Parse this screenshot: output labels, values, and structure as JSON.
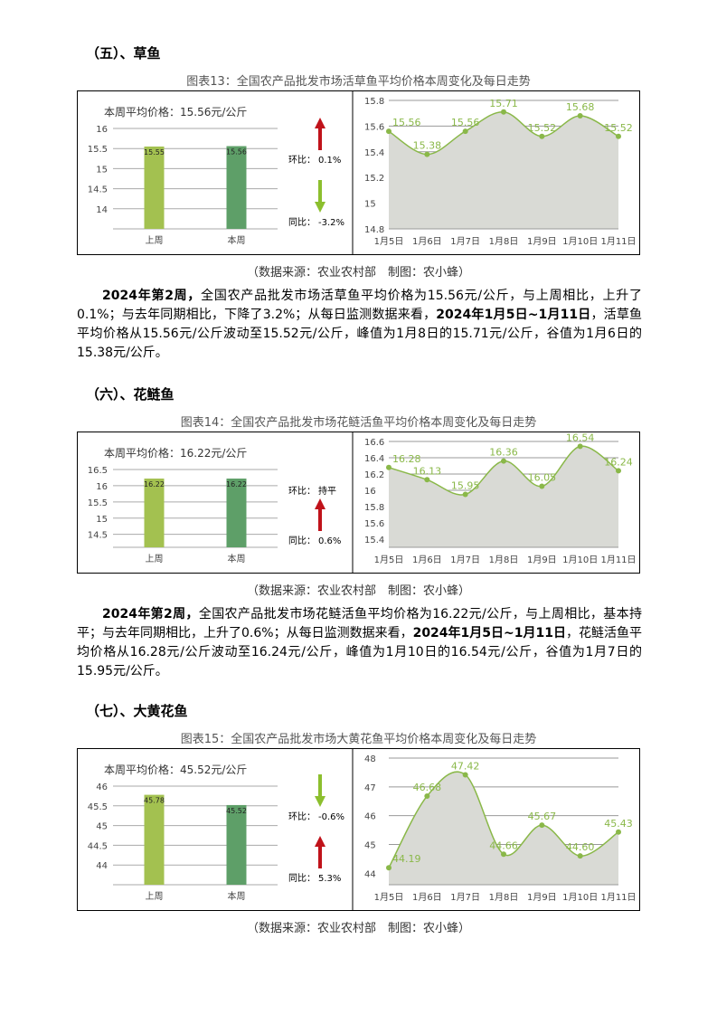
{
  "sections": [
    {
      "heading": "（五）、草鱼",
      "caption": "图表13：全国农产品批发市场活草鱼平均价格本周变化及每日走势",
      "bar_chart": {
        "type": "bar",
        "title": "本周平均价格：15.56元/公斤",
        "categories": [
          "上周",
          "本周"
        ],
        "values": [
          15.55,
          15.56
        ],
        "colors": [
          "#a3c150",
          "#5e9f68"
        ],
        "ylim": [
          13.5,
          16
        ],
        "yticks": [
          14,
          14.5,
          15,
          15.5,
          16
        ],
        "grid": true
      },
      "changes": [
        {
          "label": "环比：",
          "value": "0.1%",
          "arrow": "up"
        },
        {
          "label": "同比：",
          "value": "-3.2%",
          "arrow": "down"
        }
      ],
      "line_chart": {
        "type": "line",
        "categories": [
          "1月5日",
          "1月6日",
          "1月7日",
          "1月8日",
          "1月9日",
          "1月10日",
          "1月11日"
        ],
        "values": [
          15.56,
          15.38,
          15.56,
          15.71,
          15.52,
          15.68,
          15.52
        ],
        "ylim": [
          14.8,
          15.8
        ],
        "yticks": [
          14.8,
          15,
          15.2,
          15.4,
          15.6,
          15.8
        ],
        "color": "#8ab849",
        "area_color": "#d9dad5",
        "grid": true
      },
      "source": "（数据来源：农业农村部　制图：农小蜂）",
      "paragraph": [
        {
          "text": "2024年第2周，",
          "bold": true
        },
        {
          "text": "全国农产品批发市场活草鱼平均价格为15.56元/公斤，与上周相比，上升了0.1%；与去年同期相比，下降了3.2%；从每日监测数据来看，",
          "bold": false
        },
        {
          "text": "2024年1月5日~1月11日",
          "bold": true
        },
        {
          "text": "，活草鱼平均价格从15.56元/公斤波动至15.52元/公斤，峰值为1月8日的15.71元/公斤，谷值为1月6日的15.38元/公斤。",
          "bold": false
        }
      ]
    },
    {
      "heading": "（六）、花鲢鱼",
      "caption": "图表14：全国农产品批发市场花鲢活鱼平均价格本周变化及每日走势",
      "bar_chart": {
        "type": "bar",
        "title": "本周平均价格：16.22元/公斤",
        "categories": [
          "上周",
          "本周"
        ],
        "values": [
          16.22,
          16.22
        ],
        "colors": [
          "#a3c150",
          "#5e9f68"
        ],
        "ylim": [
          14.1,
          16.5
        ],
        "yticks": [
          14.5,
          15,
          15.5,
          16,
          16.5
        ],
        "grid": true
      },
      "changes": [
        {
          "label": "环比：",
          "value": "持平",
          "arrow": null
        },
        {
          "label": "同比：",
          "value": "0.6%",
          "arrow": "up"
        }
      ],
      "line_chart": {
        "type": "line",
        "categories": [
          "1月5日",
          "1月6日",
          "1月7日",
          "1月8日",
          "1月9日",
          "1月10日",
          "1月11日"
        ],
        "values": [
          16.28,
          16.13,
          15.95,
          16.36,
          16.05,
          16.54,
          16.24
        ],
        "ylim": [
          15.3,
          16.6
        ],
        "yticks": [
          15.4,
          15.6,
          15.8,
          16,
          16.2,
          16.4,
          16.6
        ],
        "color": "#8ab849",
        "area_color": "#d9dad5",
        "grid": true
      },
      "source": "（数据来源：农业农村部　制图：农小蜂）",
      "paragraph": [
        {
          "text": "2024年第2周，",
          "bold": true
        },
        {
          "text": "全国农产品批发市场花鲢活鱼平均价格为16.22元/公斤，与上周相比，基本持平；与去年同期相比，上升了0.6%；从每日监测数据来看，",
          "bold": false
        },
        {
          "text": "2024年1月5日~1月11日",
          "bold": true
        },
        {
          "text": "，花鲢活鱼平均价格从16.28元/公斤波动至16.24元/公斤，峰值为1月10日的16.54元/公斤，谷值为1月7日的15.95元/公斤。",
          "bold": false
        }
      ]
    },
    {
      "heading": "（七）、大黄花鱼",
      "caption": "图表15：全国农产品批发市场大黄花鱼平均价格本周变化及每日走势",
      "bar_chart": {
        "type": "bar",
        "title": "本周平均价格：45.52元/公斤",
        "categories": [
          "上周",
          "本周"
        ],
        "values": [
          45.78,
          45.52
        ],
        "colors": [
          "#a3c150",
          "#5e9f68"
        ],
        "ylim": [
          43.5,
          46
        ],
        "yticks": [
          44,
          44.5,
          45,
          45.5,
          46
        ],
        "grid": true
      },
      "changes": [
        {
          "label": "环比：",
          "value": "-0.6%",
          "arrow": "down"
        },
        {
          "label": "同比：",
          "value": "5.3%",
          "arrow": "up"
        }
      ],
      "line_chart": {
        "type": "line",
        "categories": [
          "1月5日",
          "1月6日",
          "1月7日",
          "1月8日",
          "1月9日",
          "1月10日",
          "1月11日"
        ],
        "values": [
          44.19,
          46.68,
          47.42,
          44.66,
          45.67,
          44.6,
          45.43
        ],
        "value_labels": [
          "44.19",
          "46.68",
          "47.42",
          "44.66",
          "45.67",
          "44.60",
          "45.43"
        ],
        "ylim": [
          43.6,
          48
        ],
        "yticks": [
          44,
          45,
          46,
          47,
          48
        ],
        "color": "#8ab849",
        "area_color": "#d9dad5",
        "grid": true
      },
      "source": "（数据来源：农业农村部　制图：农小蜂）"
    }
  ]
}
